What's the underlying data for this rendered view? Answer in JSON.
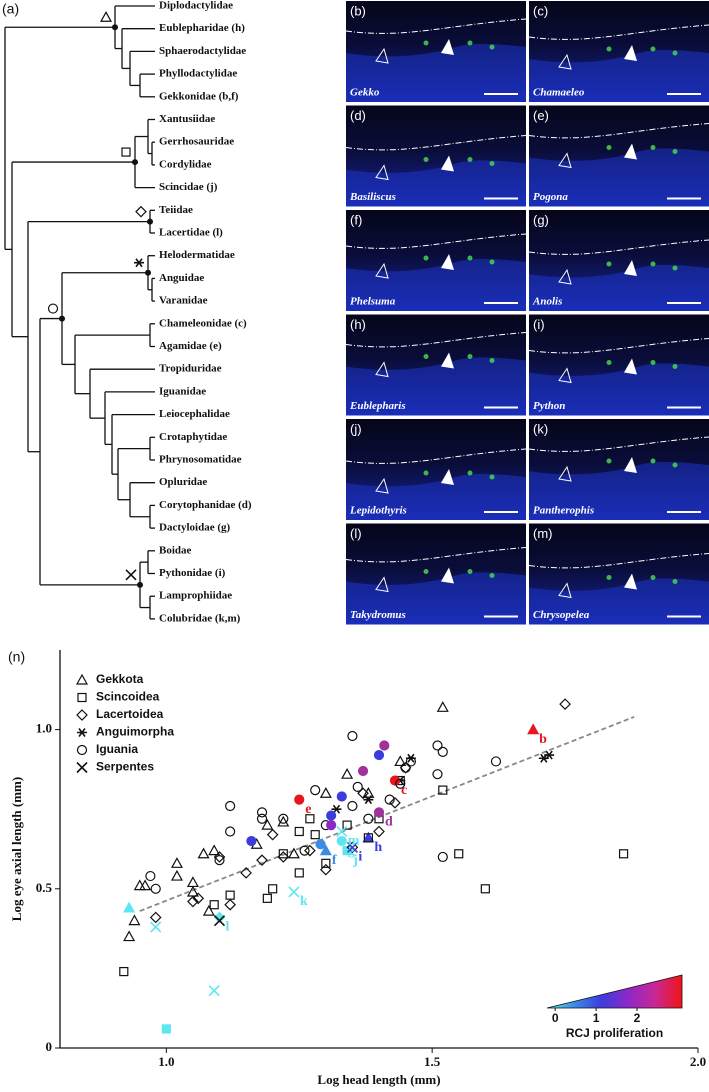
{
  "tree": {
    "label": "(a)",
    "taxa": [
      "Diplodactylidae",
      "Eublepharidae (h)",
      "Sphaerodactylidae",
      "Phyllodactylidae",
      "Gekkonidae (b,f)",
      "Xantusiidae",
      "Gerrhosauridae",
      "Cordylidae",
      "Scincidae (j)",
      "Teiidae",
      "Lacertidae (l)",
      "Helodermatidae",
      "Anguidae",
      "Varanidae",
      "Chameleonidae (c)",
      "Agamidae (e)",
      "Tropiduridae",
      "Iguanidae",
      "Leiocephalidae",
      "Crotaphytidae",
      "Phrynosomatidae",
      "Opluridae",
      "Corytophanidae (d)",
      "Dactyloidae (g)",
      "Boidae",
      "Pythonidae (i)",
      "Lamprophiidae",
      "Colubridae (k,m)"
    ]
  },
  "panels": [
    {
      "label": "(b)",
      "genus": "Gekko"
    },
    {
      "label": "(c)",
      "genus": "Chamaeleo"
    },
    {
      "label": "(d)",
      "genus": "Basiliscus"
    },
    {
      "label": "(e)",
      "genus": "Pogona"
    },
    {
      "label": "(f)",
      "genus": "Phelsuma"
    },
    {
      "label": "(g)",
      "genus": "Anolis"
    },
    {
      "label": "(h)",
      "genus": "Eublepharis"
    },
    {
      "label": "(i)",
      "genus": "Python"
    },
    {
      "label": "(j)",
      "genus": "Lepidothyris"
    },
    {
      "label": "(k)",
      "genus": "Pantherophis"
    },
    {
      "label": "(l)",
      "genus": "Takydromus"
    },
    {
      "label": "(m)",
      "genus": "Chrysopelea"
    }
  ],
  "chart_data": {
    "type": "scatter",
    "panel_label": "(n)",
    "x_label": "Log head length (mm)",
    "y_label": "Log eye axial length (mm)",
    "xlim": [
      0.8,
      2.0
    ],
    "xticks": [
      {
        "value": 1.0,
        "label": "1.0"
      },
      {
        "value": 1.5,
        "label": "1.5"
      },
      {
        "value": 2.0,
        "label": "2.0"
      }
    ],
    "ylim": [
      0,
      1.25
    ],
    "yticks": [
      0,
      {
        "value": 0.5,
        "label": "0.5"
      },
      {
        "value": 1.0,
        "label": "1.0"
      }
    ],
    "legend": "top-left",
    "trendline": {
      "x": [
        0.95,
        1.88
      ],
      "y": [
        0.43,
        1.04
      ],
      "color": "#888888"
    },
    "series": [
      {
        "name": "Gekkota",
        "marker": "triangle",
        "x": [
          0.93,
          0.94,
          0.93,
          0.95,
          0.96,
          1.02,
          1.02,
          1.05,
          1.05,
          1.07,
          1.09,
          1.08,
          1.17,
          1.19,
          1.22,
          1.24,
          1.3,
          1.34,
          1.38,
          1.44,
          1.52,
          1.69,
          1.3,
          1.38
        ],
        "values": [
          0.35,
          0.4,
          0.44,
          0.51,
          0.51,
          0.58,
          0.54,
          0.49,
          0.52,
          0.61,
          0.62,
          0.43,
          0.64,
          0.7,
          0.71,
          0.61,
          0.8,
          0.86,
          0.8,
          0.9,
          1.07,
          1.0,
          0.62,
          0.66
        ],
        "colors": [
          "none",
          "none",
          "#5ee6f0",
          "none",
          "none",
          "none",
          "none",
          "none",
          "none",
          "none",
          "none",
          "none",
          "none",
          "none",
          "none",
          "none",
          "none",
          "none",
          "none",
          "none",
          "none",
          "#e8141e",
          "#3c8ce6",
          "#3c3cdc"
        ],
        "point_labels": [
          null,
          null,
          null,
          null,
          null,
          null,
          null,
          null,
          null,
          null,
          null,
          null,
          null,
          null,
          null,
          null,
          null,
          null,
          null,
          null,
          null,
          "b",
          "f",
          "h"
        ]
      },
      {
        "name": "Scincoidea",
        "marker": "square",
        "x": [
          0.92,
          1.0,
          1.09,
          1.12,
          1.19,
          1.2,
          1.22,
          1.25,
          1.25,
          1.27,
          1.28,
          1.3,
          1.34,
          1.38,
          1.4,
          1.44,
          1.52,
          1.55,
          1.6,
          1.86,
          1.34
        ],
        "values": [
          0.24,
          0.06,
          0.45,
          0.48,
          0.47,
          0.5,
          0.61,
          0.55,
          0.68,
          0.72,
          0.67,
          0.58,
          0.7,
          0.66,
          0.72,
          0.84,
          0.81,
          0.61,
          0.5,
          0.61,
          0.62
        ],
        "colors": [
          "none",
          "#5ee6f0",
          "none",
          "none",
          "none",
          "none",
          "none",
          "none",
          "none",
          "none",
          "none",
          "none",
          "none",
          "none",
          "none",
          "none",
          "none",
          "none",
          "none",
          "none",
          "#5ee6f0"
        ],
        "point_labels": [
          null,
          null,
          null,
          null,
          null,
          null,
          null,
          null,
          null,
          null,
          null,
          null,
          null,
          null,
          null,
          null,
          null,
          null,
          null,
          null,
          "j"
        ]
      },
      {
        "name": "Lacertoidea",
        "marker": "diamond",
        "x": [
          0.98,
          1.05,
          1.06,
          1.1,
          1.12,
          1.15,
          1.18,
          1.2,
          1.22,
          1.27,
          1.3,
          1.35,
          1.4,
          1.43,
          1.45,
          1.75,
          1.37,
          1.1
        ],
        "values": [
          0.41,
          0.46,
          0.47,
          0.6,
          0.45,
          0.55,
          0.59,
          0.67,
          0.6,
          0.62,
          0.56,
          0.63,
          0.68,
          0.77,
          0.88,
          1.08,
          0.8,
          0.41
        ],
        "colors": [
          "none",
          "none",
          "none",
          "none",
          "none",
          "none",
          "none",
          "none",
          "none",
          "none",
          "none",
          "none",
          "none",
          "none",
          "none",
          "none",
          "none",
          "#5ee6f0"
        ],
        "point_labels": [
          null,
          null,
          null,
          null,
          null,
          null,
          null,
          null,
          null,
          null,
          null,
          null,
          null,
          null,
          null,
          null,
          null,
          "l"
        ]
      },
      {
        "name": "Anguimorpha",
        "marker": "asterisk",
        "x": [
          1.38,
          1.44,
          1.46,
          1.71,
          1.72,
          1.32
        ],
        "values": [
          0.78,
          0.84,
          0.91,
          0.91,
          0.92,
          0.75
        ],
        "colors": [
          "none",
          "none",
          "none",
          "none",
          "none",
          "none"
        ],
        "point_labels": [
          null,
          null,
          null,
          null,
          null,
          null
        ]
      },
      {
        "name": "Iguania",
        "marker": "circle",
        "x": [
          0.97,
          0.98,
          1.1,
          1.12,
          1.12,
          1.16,
          1.18,
          1.22,
          1.25,
          1.28,
          1.3,
          1.31,
          1.31,
          1.33,
          1.35,
          1.35,
          1.37,
          1.4,
          1.41,
          1.43,
          1.42,
          1.44,
          1.45,
          1.46,
          1.51,
          1.51,
          1.52,
          1.52,
          1.62,
          1.4,
          1.33,
          1.29,
          1.38,
          1.18,
          1.36,
          1.26
        ],
        "values": [
          0.54,
          0.5,
          0.59,
          0.68,
          0.76,
          0.65,
          0.74,
          0.72,
          0.78,
          0.81,
          0.7,
          0.73,
          0.7,
          0.79,
          0.76,
          0.98,
          0.87,
          0.92,
          0.95,
          0.84,
          0.78,
          0.83,
          0.88,
          0.9,
          0.95,
          0.86,
          0.6,
          0.93,
          0.9,
          0.74,
          0.65,
          0.64,
          0.72,
          0.72,
          0.82,
          0.62
        ],
        "colors": [
          "none",
          "none",
          "none",
          "none",
          "none",
          "#3c3cdc",
          "none",
          "none",
          "#e8141e",
          "none",
          "none",
          "#3c3cdc",
          "#8c28c8",
          "#3c3cdc",
          "none",
          "none",
          "#a0329c",
          "#3c3cdc",
          "#a0329c",
          "#e8141e",
          "none",
          "none",
          "none",
          "none",
          "none",
          "none",
          "none",
          "none",
          "none",
          "#a0329c",
          "#5ee6f0",
          "#3c8ce6",
          "none",
          "none",
          "none",
          "none"
        ],
        "point_labels": [
          null,
          null,
          null,
          null,
          null,
          null,
          null,
          null,
          "e",
          null,
          null,
          null,
          null,
          null,
          null,
          null,
          null,
          null,
          null,
          "c",
          null,
          null,
          null,
          null,
          null,
          null,
          null,
          null,
          null,
          "d",
          "g",
          null,
          null,
          null,
          null,
          null
        ]
      },
      {
        "name": "Serpentes",
        "marker": "cross",
        "x": [
          0.98,
          1.1,
          1.09,
          1.24,
          1.35,
          1.33
        ],
        "values": [
          0.38,
          0.4,
          0.18,
          0.49,
          0.63,
          0.68
        ],
        "colors": [
          "#5ee6f0",
          "none",
          "#5ee6f0",
          "#5ee6f0",
          "#3c3cdc",
          "#5ee6f0"
        ],
        "point_labels": [
          null,
          null,
          null,
          "k",
          "i",
          "m"
        ]
      }
    ],
    "colorbar": {
      "label": "RCJ proliferation",
      "lim": [
        -0.2,
        3.1
      ],
      "ticks": [
        0,
        1,
        2
      ],
      "colors": [
        "#5ee6f0",
        "#3c8ce6",
        "#3c3cdc",
        "#8c28c8",
        "#c82896",
        "#f01414"
      ]
    }
  }
}
